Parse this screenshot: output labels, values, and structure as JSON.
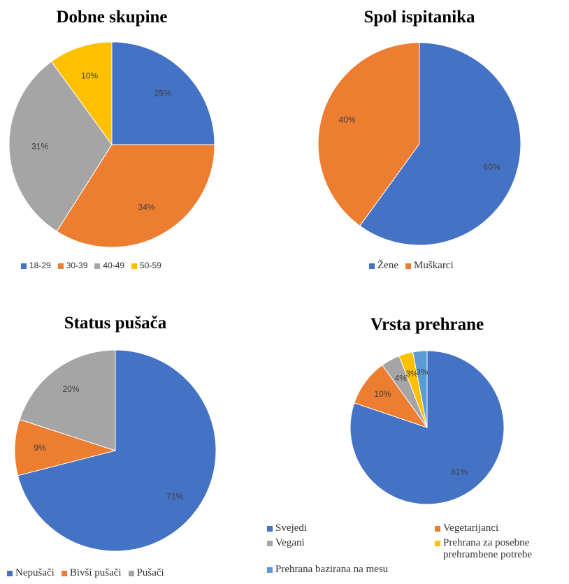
{
  "chart_data": [
    {
      "type": "pie",
      "title": "Dobne skupine",
      "categories": [
        "18-29",
        "30-39",
        "40-49",
        "50-59"
      ],
      "values": [
        25,
        34,
        31,
        10
      ],
      "value_labels": [
        "25%",
        "34%",
        "31%",
        "10%"
      ],
      "colors": [
        "#4472c4",
        "#ed7d31",
        "#a5a5a5",
        "#ffc000"
      ]
    },
    {
      "type": "pie",
      "title": "Spol ispitanika",
      "categories": [
        "Žene",
        "Muškarci"
      ],
      "values": [
        60,
        40
      ],
      "value_labels": [
        "60%",
        "40%"
      ],
      "colors": [
        "#4472c4",
        "#ed7d31"
      ]
    },
    {
      "type": "pie",
      "title": "Status pušača",
      "categories": [
        "Nepušači",
        "Bivši pušači",
        "Pušači"
      ],
      "values": [
        71,
        9,
        20
      ],
      "value_labels": [
        "71%",
        "9%",
        "20%"
      ],
      "colors": [
        "#4472c4",
        "#ed7d31",
        "#a5a5a5"
      ]
    },
    {
      "type": "pie",
      "title": "Vrsta prehrane",
      "categories": [
        "Svejedi",
        "Vegetarijanci",
        "Vegani",
        "Prehrana za posebne prehrambene potrebe",
        "Prehrana bazirana na mesu"
      ],
      "values": [
        81,
        10,
        4,
        3,
        3
      ],
      "value_labels": [
        "81%",
        "10%",
        "4%",
        "3%",
        "3%"
      ],
      "colors": [
        "#4472c4",
        "#ed7d31",
        "#a5a5a5",
        "#ffc000",
        "#5b9bd5"
      ]
    }
  ]
}
